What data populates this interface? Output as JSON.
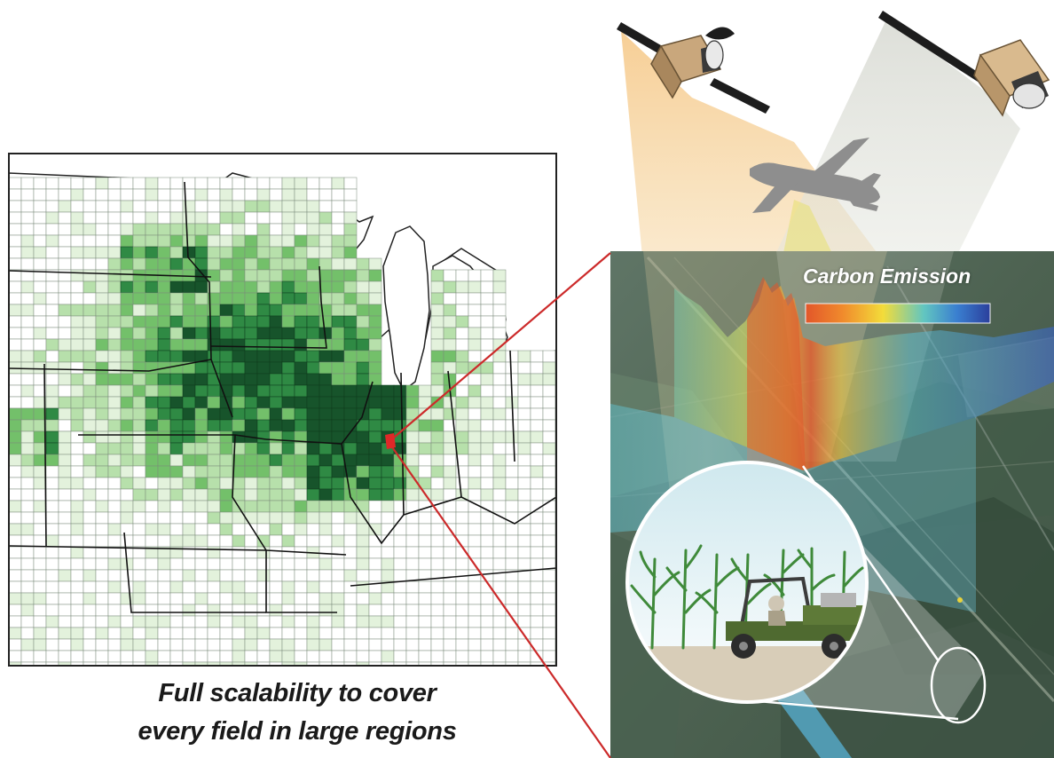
{
  "caption": {
    "line1": "Full scalability to cover",
    "line2": "every field in large regions"
  },
  "legend": {
    "title": "Carbon Emission",
    "gradient": [
      "#e2562a",
      "#f08a2c",
      "#f3dc3a",
      "#62c6c0",
      "#3a7fd0",
      "#2b3f9c"
    ]
  },
  "colors": {
    "map_green_1": "#e3f2dc",
    "map_green_2": "#b7e0ab",
    "map_green_3": "#73c06a",
    "map_green_4": "#2f8a44",
    "map_green_5": "#17542b",
    "connector_line": "#cc2a2a",
    "aircraft": "#8e8e8e",
    "satellite_body": "#c9a77c"
  },
  "icons": [
    "satellite-icon",
    "satellite-icon",
    "aircraft-icon",
    "utility-vehicle-icon",
    "corn-plant-icon"
  ]
}
